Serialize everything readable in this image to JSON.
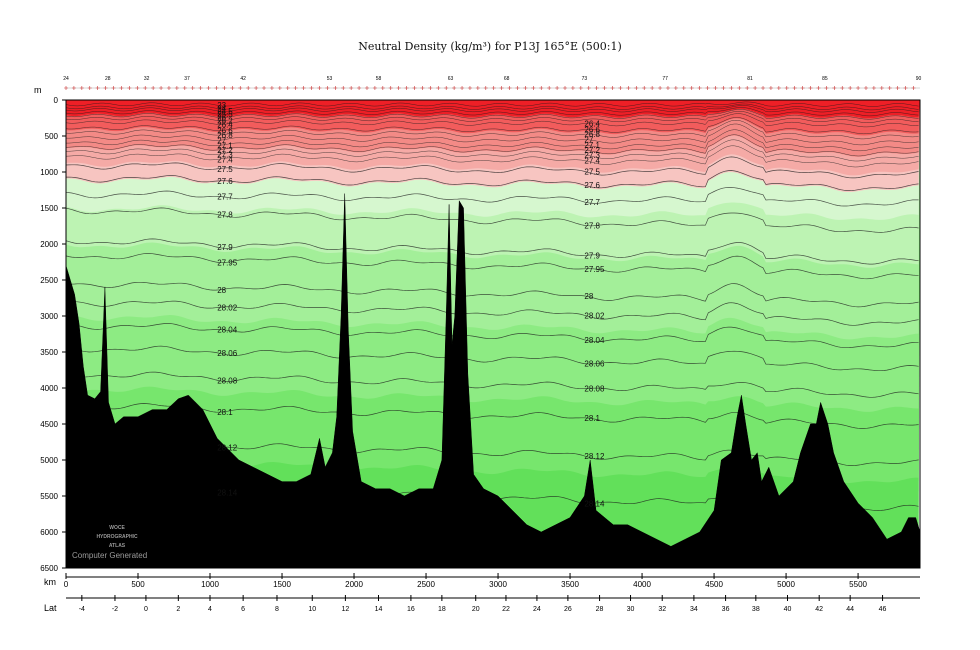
{
  "chart_data": {
    "type": "heatmap",
    "title": "Neutral Density (kg/m³) for P13J 165°E (500:1)",
    "xlabel": "km",
    "ylabel": "m",
    "lat_label": "Lat",
    "xlim": [
      0,
      5930
    ],
    "ylim": [
      6500,
      0
    ],
    "x_ticks": [
      0,
      500,
      1000,
      1500,
      2000,
      2500,
      3000,
      3500,
      4000,
      4500,
      5000,
      5500
    ],
    "y_ticks": [
      0,
      500,
      1000,
      1500,
      2000,
      2500,
      3000,
      3500,
      4000,
      4500,
      5000,
      5500,
      6000,
      6500
    ],
    "lat_ticks": [
      {
        "km": 110,
        "label": "-4"
      },
      {
        "km": 340,
        "label": "-2"
      },
      {
        "km": 555,
        "label": "0"
      },
      {
        "km": 780,
        "label": "2"
      },
      {
        "km": 1000,
        "label": "4"
      },
      {
        "km": 1230,
        "label": "6"
      },
      {
        "km": 1465,
        "label": "8"
      },
      {
        "km": 1710,
        "label": "10"
      },
      {
        "km": 1940,
        "label": "12"
      },
      {
        "km": 2170,
        "label": "14"
      },
      {
        "km": 2395,
        "label": "16"
      },
      {
        "km": 2610,
        "label": "18"
      },
      {
        "km": 2845,
        "label": "20"
      },
      {
        "km": 3055,
        "label": "22"
      },
      {
        "km": 3270,
        "label": "24"
      },
      {
        "km": 3485,
        "label": "26"
      },
      {
        "km": 3705,
        "label": "28"
      },
      {
        "km": 3920,
        "label": "30"
      },
      {
        "km": 4140,
        "label": "32"
      },
      {
        "km": 4360,
        "label": "34"
      },
      {
        "km": 4580,
        "label": "36"
      },
      {
        "km": 4790,
        "label": "38"
      },
      {
        "km": 5010,
        "label": "40"
      },
      {
        "km": 5230,
        "label": "42"
      },
      {
        "km": 5445,
        "label": "44"
      },
      {
        "km": 5670,
        "label": "46"
      }
    ],
    "station_labels": [
      {
        "km": 0,
        "label": "24"
      },
      {
        "km": 290,
        "label": "28"
      },
      {
        "km": 560,
        "label": "32"
      },
      {
        "km": 840,
        "label": "37"
      },
      {
        "km": 1230,
        "label": "42"
      },
      {
        "km": 1830,
        "label": "53"
      },
      {
        "km": 2170,
        "label": "58"
      },
      {
        "km": 2670,
        "label": "63"
      },
      {
        "km": 3060,
        "label": "68"
      },
      {
        "km": 3600,
        "label": "73"
      },
      {
        "km": 4160,
        "label": "77"
      },
      {
        "km": 4750,
        "label": "81"
      },
      {
        "km": 5270,
        "label": "85"
      },
      {
        "km": 5920,
        "label": "90"
      }
    ],
    "bands": [
      {
        "max_depth": 200,
        "color": "#ee1f26"
      },
      {
        "max_depth": 400,
        "color": "#f25c5c"
      },
      {
        "max_depth": 650,
        "color": "#f38a86"
      },
      {
        "max_depth": 870,
        "color": "#f5aaa6"
      },
      {
        "max_depth": 1100,
        "color": "#f7c5c1"
      },
      {
        "max_depth": 1500,
        "color": "#d6f7cf"
      },
      {
        "max_depth": 2000,
        "color": "#bdf3b3"
      },
      {
        "max_depth": 3000,
        "color": "#a3ef99"
      },
      {
        "max_depth": 4000,
        "color": "#8deb83"
      },
      {
        "max_depth": 5000,
        "color": "#77e66d"
      },
      {
        "max_depth": 6500,
        "color": "#62e05a"
      }
    ],
    "isopycnals": [
      {
        "value": "23",
        "depth": 60
      },
      {
        "value": "24",
        "depth": 100
      },
      {
        "value": "24.5",
        "depth": 130
      },
      {
        "value": "25.5",
        "depth": 170
      },
      {
        "value": "26",
        "depth": 210
      },
      {
        "value": "26.2",
        "depth": 250
      },
      {
        "value": "26.4",
        "depth": 300
      },
      {
        "value": "26.6",
        "depth": 380
      },
      {
        "value": "26.8",
        "depth": 440
      },
      {
        "value": "27",
        "depth": 510
      },
      {
        "value": "27.1",
        "depth": 580
      },
      {
        "value": "27.2",
        "depth": 640
      },
      {
        "value": "27.3",
        "depth": 700
      },
      {
        "value": "27.4",
        "depth": 770
      },
      {
        "value": "27.5",
        "depth": 900
      },
      {
        "value": "27.6",
        "depth": 1080
      },
      {
        "value": "27.7",
        "depth": 1300
      },
      {
        "value": "27.8",
        "depth": 1520
      },
      {
        "value": "27.9",
        "depth": 1950
      },
      {
        "value": "27.95",
        "depth": 2150
      },
      {
        "value": "28",
        "depth": 2540
      },
      {
        "value": "28.02",
        "depth": 2800
      },
      {
        "value": "28.04",
        "depth": 3120
      },
      {
        "value": "28.06",
        "depth": 3440
      },
      {
        "value": "28.08",
        "depth": 3800
      },
      {
        "value": "28.1",
        "depth": 4230
      },
      {
        "value": "28.12",
        "depth": 4750
      },
      {
        "value": "28.14",
        "depth": 5380
      }
    ],
    "bathymetry": [
      [
        0,
        2300
      ],
      [
        30,
        2500
      ],
      [
        60,
        2700
      ],
      [
        90,
        3100
      ],
      [
        120,
        3700
      ],
      [
        150,
        4100
      ],
      [
        200,
        4150
      ],
      [
        240,
        4050
      ],
      [
        270,
        2600
      ],
      [
        295,
        4200
      ],
      [
        340,
        4500
      ],
      [
        400,
        4400
      ],
      [
        500,
        4400
      ],
      [
        600,
        4300
      ],
      [
        700,
        4300
      ],
      [
        780,
        4150
      ],
      [
        850,
        4100
      ],
      [
        900,
        4200
      ],
      [
        950,
        4300
      ],
      [
        1000,
        4500
      ],
      [
        1050,
        4700
      ],
      [
        1100,
        4800
      ],
      [
        1200,
        5000
      ],
      [
        1300,
        5100
      ],
      [
        1400,
        5200
      ],
      [
        1500,
        5300
      ],
      [
        1600,
        5300
      ],
      [
        1700,
        5200
      ],
      [
        1760,
        4700
      ],
      [
        1800,
        5100
      ],
      [
        1850,
        4900
      ],
      [
        1880,
        4400
      ],
      [
        1910,
        3000
      ],
      [
        1935,
        1300
      ],
      [
        1960,
        3200
      ],
      [
        1990,
        4600
      ],
      [
        2050,
        5300
      ],
      [
        2150,
        5400
      ],
      [
        2250,
        5400
      ],
      [
        2350,
        5500
      ],
      [
        2450,
        5400
      ],
      [
        2550,
        5400
      ],
      [
        2610,
        5000
      ],
      [
        2640,
        3000
      ],
      [
        2660,
        1450
      ],
      [
        2680,
        3400
      ],
      [
        2700,
        3000
      ],
      [
        2730,
        1400
      ],
      [
        2760,
        1500
      ],
      [
        2790,
        3800
      ],
      [
        2830,
        5200
      ],
      [
        2900,
        5400
      ],
      [
        3000,
        5500
      ],
      [
        3100,
        5700
      ],
      [
        3200,
        5900
      ],
      [
        3300,
        6000
      ],
      [
        3400,
        5900
      ],
      [
        3500,
        5800
      ],
      [
        3600,
        5500
      ],
      [
        3640,
        5000
      ],
      [
        3680,
        5700
      ],
      [
        3800,
        5900
      ],
      [
        3900,
        5900
      ],
      [
        4000,
        6000
      ],
      [
        4100,
        6100
      ],
      [
        4200,
        6200
      ],
      [
        4300,
        6100
      ],
      [
        4400,
        6000
      ],
      [
        4500,
        5700
      ],
      [
        4550,
        5000
      ],
      [
        4620,
        4900
      ],
      [
        4660,
        4400
      ],
      [
        4690,
        4100
      ],
      [
        4720,
        4500
      ],
      [
        4760,
        5000
      ],
      [
        4800,
        4900
      ],
      [
        4830,
        5300
      ],
      [
        4880,
        5100
      ],
      [
        4950,
        5500
      ],
      [
        5050,
        5300
      ],
      [
        5100,
        4900
      ],
      [
        5170,
        4500
      ],
      [
        5210,
        4500
      ],
      [
        5240,
        4200
      ],
      [
        5290,
        4500
      ],
      [
        5330,
        4900
      ],
      [
        5400,
        5300
      ],
      [
        5500,
        5600
      ],
      [
        5600,
        5800
      ],
      [
        5700,
        6100
      ],
      [
        5800,
        6000
      ],
      [
        5850,
        5800
      ],
      [
        5900,
        5800
      ],
      [
        5930,
        6000
      ]
    ]
  },
  "brand": {
    "line1": "WOCE",
    "line2": "HYDROGRAPHIC",
    "line3": "ATLAS",
    "line4": "Computer Generated"
  }
}
